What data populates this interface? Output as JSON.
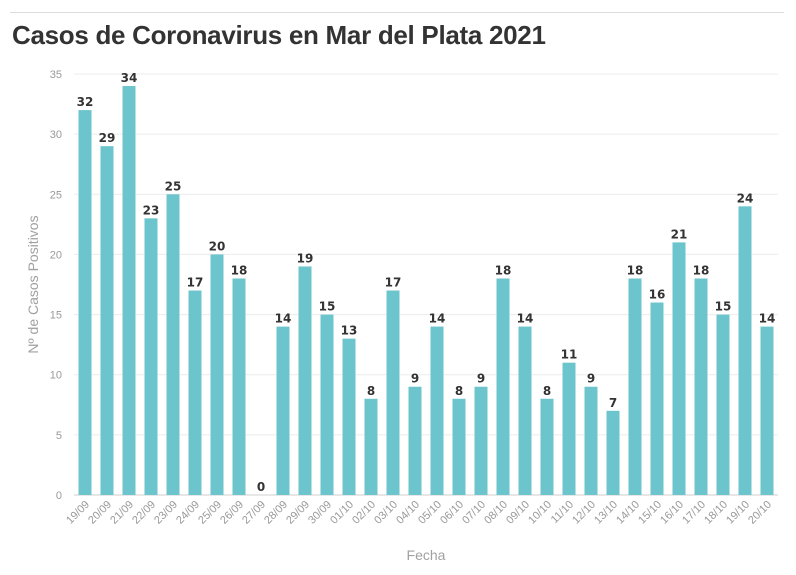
{
  "title": "Casos de Coronavirus en Mar del Plata 2021",
  "chart_data": {
    "type": "bar",
    "title": "Casos de Coronavirus en Mar del Plata 2021",
    "xlabel": "Fecha",
    "ylabel": "Nº de Casos Positivos",
    "ylim": [
      0,
      35
    ],
    "yticks": [
      0,
      5,
      10,
      15,
      20,
      25,
      30,
      35
    ],
    "grid": true,
    "color": "#6cc5cc",
    "categories": [
      "19/09",
      "20/09",
      "21/09",
      "22/09",
      "23/09",
      "24/09",
      "25/09",
      "26/09",
      "27/09",
      "28/09",
      "29/09",
      "30/09",
      "01/10",
      "02/10",
      "03/10",
      "04/10",
      "05/10",
      "06/10",
      "07/10",
      "08/10",
      "09/10",
      "10/10",
      "11/10",
      "12/10",
      "13/10",
      "14/10",
      "15/10",
      "16/10",
      "17/10",
      "18/10",
      "19/10",
      "20/10"
    ],
    "values": [
      32,
      29,
      34,
      23,
      25,
      17,
      20,
      18,
      0,
      14,
      19,
      15,
      13,
      8,
      17,
      9,
      14,
      8,
      9,
      18,
      14,
      8,
      11,
      9,
      7,
      18,
      16,
      21,
      18,
      15,
      24,
      14
    ]
  }
}
